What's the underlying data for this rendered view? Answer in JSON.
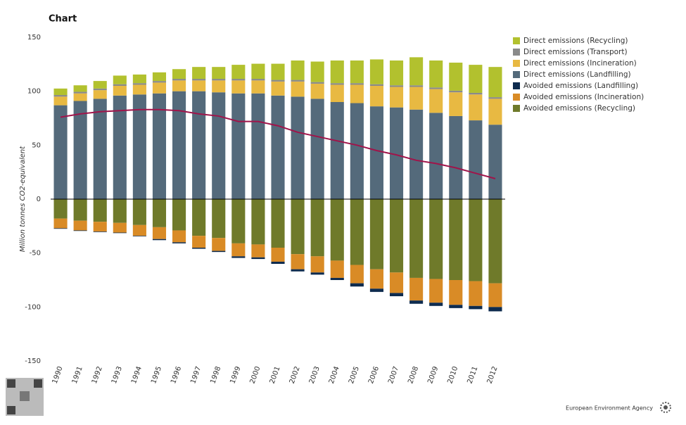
{
  "chart_data": {
    "type": "stacked_bar_line",
    "title": "Chart",
    "y_label": "Million tonnes CO2-equivalent",
    "source": "European Environment Agency",
    "categories": [
      "1990",
      "1991",
      "1992",
      "1993",
      "1994",
      "1995",
      "1996",
      "1997",
      "1998",
      "1999",
      "2000",
      "2001",
      "2002",
      "2003",
      "2004",
      "2005",
      "2006",
      "2007",
      "2008",
      "2009",
      "2010",
      "2011",
      "2012"
    ],
    "ylim": [
      -150,
      150
    ],
    "yticks": [
      -150,
      -100,
      -50,
      0,
      50,
      100,
      150
    ],
    "series": [
      {
        "name": "Direct emissions (Recycling)",
        "color": "#b2c12e",
        "values": [
          6,
          6,
          7,
          8,
          8,
          8,
          9,
          11,
          11,
          13,
          14,
          15,
          18,
          19,
          21,
          21,
          23,
          23,
          26,
          25,
          26,
          26,
          28
        ]
      },
      {
        "name": "Direct emissions (Transport)",
        "color": "#8a8a8a",
        "values": [
          1.5,
          1.5,
          1.5,
          1.5,
          1.5,
          1.5,
          1.5,
          1.5,
          1.5,
          1.5,
          1.5,
          1.5,
          1.5,
          1.5,
          1.5,
          1.5,
          1.5,
          1.5,
          1.5,
          1.5,
          1.5,
          1.5,
          1.5
        ]
      },
      {
        "name": "Direct emissions (Incineration)",
        "color": "#e8b942",
        "values": [
          8,
          7,
          8,
          9,
          9,
          10,
          10,
          10,
          11,
          12,
          12,
          13,
          14,
          14,
          16,
          17,
          19,
          19,
          21,
          22,
          22,
          24,
          24
        ]
      },
      {
        "name": "Direct emissions (Landfilling)",
        "color": "#546a7b",
        "values": [
          87,
          91,
          93,
          96,
          97,
          98,
          100,
          100,
          99,
          98,
          98,
          96,
          95,
          93,
          90,
          89,
          86,
          85,
          83,
          80,
          77,
          73,
          69
        ]
      },
      {
        "name": "Avoided emissions (Landfilling)",
        "color": "#0e2b4e",
        "values": [
          -0.5,
          -0.5,
          -0.5,
          -0.5,
          -0.5,
          -1,
          -1,
          -1,
          -1,
          -1.5,
          -1.5,
          -2,
          -2,
          -2,
          -2,
          -3,
          -3,
          -3,
          -3,
          -3,
          -3,
          -3,
          -4
        ]
      },
      {
        "name": "Avoided emissions (Incineration)",
        "color": "#d98b26",
        "values": [
          -9,
          -9,
          -9,
          -9,
          -10,
          -11,
          -11,
          -11,
          -12,
          -12,
          -12,
          -13,
          -14,
          -15,
          -16,
          -17,
          -18,
          -19,
          -21,
          -22,
          -23,
          -23,
          -22
        ]
      },
      {
        "name": "Avoided emissions (Recycling)",
        "color": "#6f7a2a",
        "values": [
          -18,
          -20,
          -21,
          -22,
          -24,
          -26,
          -29,
          -34,
          -36,
          -41,
          -42,
          -45,
          -51,
          -53,
          -57,
          -61,
          -65,
          -68,
          -73,
          -74,
          -75,
          -76,
          -78
        ]
      }
    ],
    "line": {
      "color": "#a0144a",
      "values": [
        76,
        79,
        81,
        82,
        83,
        83,
        82,
        79,
        77,
        72,
        72,
        68,
        62,
        58,
        54,
        50,
        45,
        41,
        36,
        33,
        29,
        24,
        19
      ]
    }
  }
}
